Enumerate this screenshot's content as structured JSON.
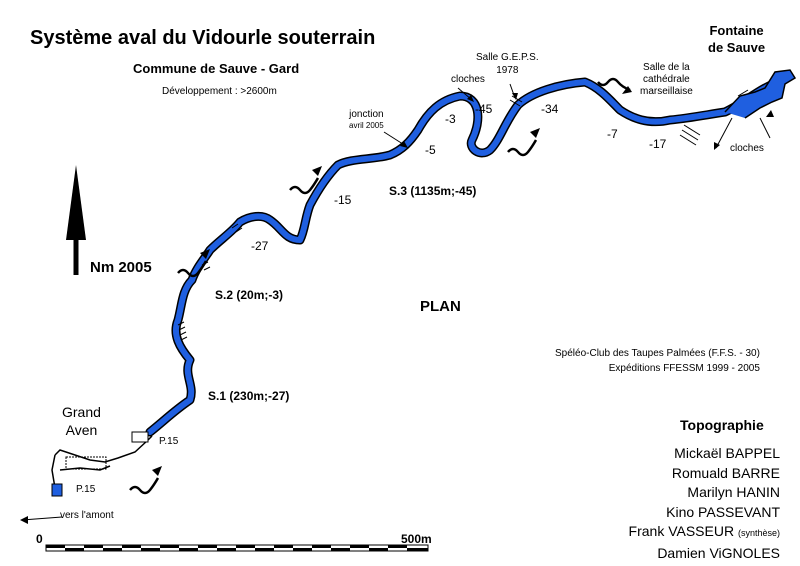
{
  "map": {
    "title": "Système aval du Vidourle souterrain",
    "subtitle": "Commune de Sauve - Gard",
    "development": "Développement : >2600m",
    "view_label": "PLAN",
    "north_label": "Nm 2005",
    "places": {
      "fontaine_line1": "Fontaine",
      "fontaine_line2": "de Sauve",
      "grand_aven_line1": "Grand",
      "grand_aven_line2": "Aven",
      "upstream": "vers l'amont"
    },
    "sumps": [
      {
        "label": "S.1 (230m;-27)"
      },
      {
        "label": "S.2 (20m;-3)"
      },
      {
        "label": "S.3 (1135m;-45)"
      }
    ],
    "shafts": [
      "P.15",
      "P.15"
    ],
    "depths": [
      "-27",
      "-15",
      "-5",
      "-3",
      "-45",
      "-34",
      "-7",
      "-17"
    ],
    "annotations": {
      "jonction_line1": "jonction",
      "jonction_line2": "avril 2005",
      "cloches_a": "cloches",
      "cloches_b": "cloches",
      "geps_line1": "Salle G.E.P.S.",
      "geps_line2": "1978",
      "cathedrale_line1": "Salle de la",
      "cathedrale_line2": "cathédrale",
      "cathedrale_line3": "marseillaise"
    },
    "source": {
      "line1": "Spéléo-Club des Taupes Palmées (F.F.S. - 30)",
      "line2": "Expéditions FFESSM 1999 - 2005"
    },
    "topography": {
      "heading": "Topographie",
      "names": [
        {
          "name": "Mickaël BAPPEL",
          "note": ""
        },
        {
          "name": "Romuald BARRE",
          "note": ""
        },
        {
          "name": "Marilyn HANIN",
          "note": ""
        },
        {
          "name": "Kino PASSEVANT",
          "note": ""
        },
        {
          "name": "Frank VASSEUR",
          "note": "(synthèse)"
        },
        {
          "name": "Damien ViGNOLES",
          "note": ""
        }
      ]
    },
    "scale": {
      "start": "0",
      "end": "500m"
    },
    "colors": {
      "water": "#1f5fe0",
      "passage_outline": "#000000",
      "dry_passage": "#ffffff"
    }
  }
}
